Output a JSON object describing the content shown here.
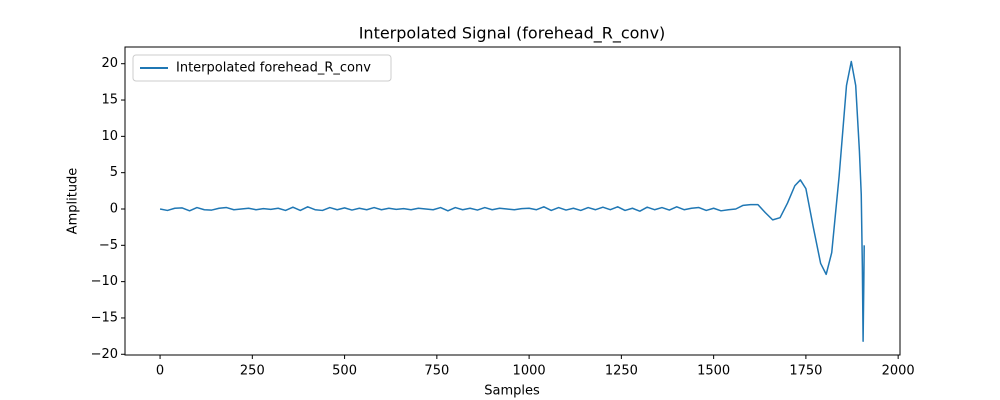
{
  "chart_data": {
    "type": "line",
    "title": "Interpolated Signal (forehead_R_conv)",
    "x_label": "Samples",
    "y_label": "Amplitude",
    "x": [
      0,
      20,
      40,
      60,
      80,
      100,
      120,
      140,
      160,
      180,
      200,
      220,
      240,
      260,
      280,
      300,
      320,
      340,
      360,
      380,
      400,
      420,
      440,
      460,
      480,
      500,
      520,
      540,
      560,
      580,
      600,
      620,
      640,
      660,
      680,
      700,
      720,
      740,
      760,
      780,
      800,
      820,
      840,
      860,
      880,
      900,
      920,
      940,
      960,
      980,
      1000,
      1020,
      1040,
      1060,
      1080,
      1100,
      1120,
      1140,
      1160,
      1180,
      1200,
      1220,
      1240,
      1260,
      1280,
      1300,
      1320,
      1340,
      1360,
      1380,
      1400,
      1420,
      1440,
      1460,
      1480,
      1500,
      1520,
      1540,
      1560,
      1580,
      1600,
      1620,
      1640,
      1660,
      1680,
      1700,
      1720,
      1735,
      1750,
      1770,
      1790,
      1805,
      1820,
      1840,
      1860,
      1873,
      1885,
      1895,
      1900,
      1903,
      1905,
      1907,
      1908
    ],
    "series": [
      {
        "name": "Interpolated forehead_R_conv",
        "color": "#1f77b4",
        "values": [
          0,
          -0.2,
          0.1,
          0.15,
          -0.25,
          0.2,
          -0.1,
          -0.15,
          0.1,
          0.2,
          -0.1,
          0,
          0.1,
          -0.1,
          0.05,
          -0.05,
          0.1,
          -0.2,
          0.25,
          -0.2,
          0.3,
          -0.1,
          -0.2,
          0.2,
          -0.1,
          0.15,
          -0.15,
          0.1,
          -0.1,
          0.2,
          -0.1,
          0.1,
          -0.05,
          0.05,
          -0.1,
          0.1,
          0,
          -0.1,
          0.2,
          -0.25,
          0.2,
          -0.1,
          0.1,
          -0.15,
          0.2,
          -0.1,
          0.1,
          0,
          -0.1,
          0.05,
          0.1,
          -0.1,
          0.3,
          -0.2,
          0.2,
          -0.15,
          0.1,
          -0.2,
          0.2,
          -0.1,
          0.25,
          -0.1,
          0.3,
          -0.2,
          0.1,
          -0.3,
          0.25,
          -0.1,
          0.2,
          -0.15,
          0.3,
          -0.1,
          0.1,
          0.2,
          -0.2,
          0.1,
          -0.25,
          -0.1,
          0,
          0.5,
          0.6,
          0.6,
          -0.5,
          -1.5,
          -1.2,
          0.8,
          3.2,
          4.0,
          2.8,
          -2.5,
          -7.5,
          -9.0,
          -6.0,
          4.5,
          17.0,
          20.3,
          17.0,
          8.0,
          2.0,
          -8.0,
          -18.2,
          -10.0,
          -5.0
        ]
      }
    ],
    "xlim": [
      -95,
      2005
    ],
    "ylim": [
      -20.1,
      22.3
    ],
    "xticks": [
      0,
      250,
      500,
      750,
      1000,
      1250,
      1500,
      1750,
      2000
    ],
    "yticks": [
      {
        "value": -20,
        "label": "−20"
      },
      {
        "value": -15,
        "label": "−15"
      },
      {
        "value": -10,
        "label": "−10"
      },
      {
        "value": -5,
        "label": "−5"
      },
      0,
      5,
      10,
      15,
      20
    ],
    "legend": "upper left",
    "grid": false
  }
}
